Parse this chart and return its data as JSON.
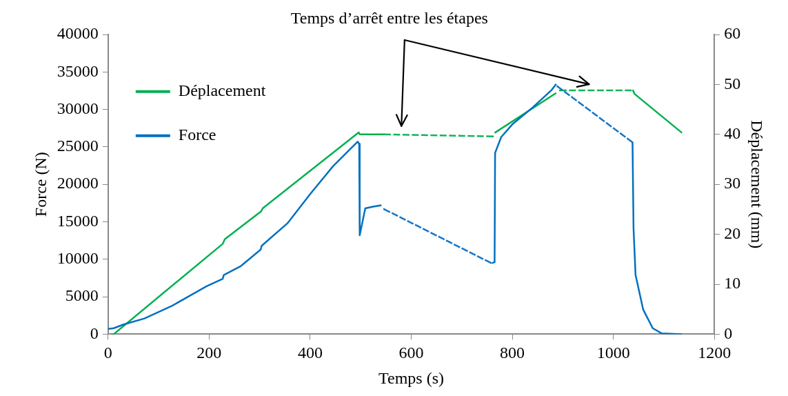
{
  "chart_data": {
    "type": "line",
    "xlabel": "Temps (s)",
    "ylabel": "Force (N)",
    "y2label": "Déplacement (mm)",
    "annotations": [
      "Temps d’arrêt entre les étapes"
    ],
    "xlim": [
      0,
      1200
    ],
    "xticks": [
      0,
      200,
      400,
      600,
      800,
      1000,
      1200
    ],
    "ylim": [
      0,
      40000
    ],
    "yticks": [
      0,
      5000,
      10000,
      15000,
      20000,
      25000,
      30000,
      35000,
      40000
    ],
    "y2lim": [
      0,
      60
    ],
    "y2ticks": [
      0,
      10,
      20,
      30,
      40,
      50,
      60
    ],
    "legend": "top left",
    "marker": "none",
    "series": [
      {
        "name": "Déplacement",
        "color": "#00b050",
        "axis": "y2",
        "line_style": "solid",
        "x": [
          7,
          11,
          227,
          231,
          303,
          306,
          496,
          498,
          546,
          600,
          762,
          765,
          878,
          887,
          950,
          1039,
          1042,
          1136
        ],
        "values": [
          0,
          0,
          18.1,
          19.0,
          24.6,
          25.2,
          40.4,
          40.0,
          40.0,
          null,
          null,
          40.3,
          47.7,
          48.3,
          null,
          48.8,
          48.1,
          40.3
        ]
      },
      {
        "name": "Force",
        "color": "#0070c0",
        "axis": "y",
        "line_style": "solid",
        "x": [
          0,
          11,
          31,
          72,
          127,
          195,
          227,
          229,
          263,
          302,
          304,
          355,
          400,
          445,
          494,
          497,
          498,
          509,
          523,
          541,
          600,
          760,
          765,
          766,
          778,
          800,
          841,
          878,
          887,
          950,
          1038,
          1040,
          1044,
          1059,
          1078,
          1096,
          1136
        ],
        "values": [
          700,
          800,
          1300,
          2100,
          3800,
          6400,
          7400,
          7900,
          9100,
          11300,
          11800,
          14800,
          18700,
          22400,
          25700,
          25400,
          13200,
          16800,
          17000,
          17200,
          null,
          9500,
          9600,
          24200,
          26300,
          28000,
          30300,
          32600,
          33400,
          null,
          25600,
          14100,
          7900,
          3300,
          800,
          100,
          0
        ]
      },
      {
        "color": "#12b45c",
        "axis": "y2",
        "line_style": "dashed",
        "x": [
          546,
          762,
          830,
          894,
          1039
        ],
        "values": [
          40.0,
          39.6,
          null,
          48.8,
          48.8
        ]
      },
      {
        "color": "#1276c8",
        "axis": "y",
        "line_style": "dashed",
        "x": [
          546,
          758,
          830,
          889,
          1038
        ],
        "values": [
          16700,
          9500,
          null,
          33100,
          25600
        ]
      }
    ]
  }
}
